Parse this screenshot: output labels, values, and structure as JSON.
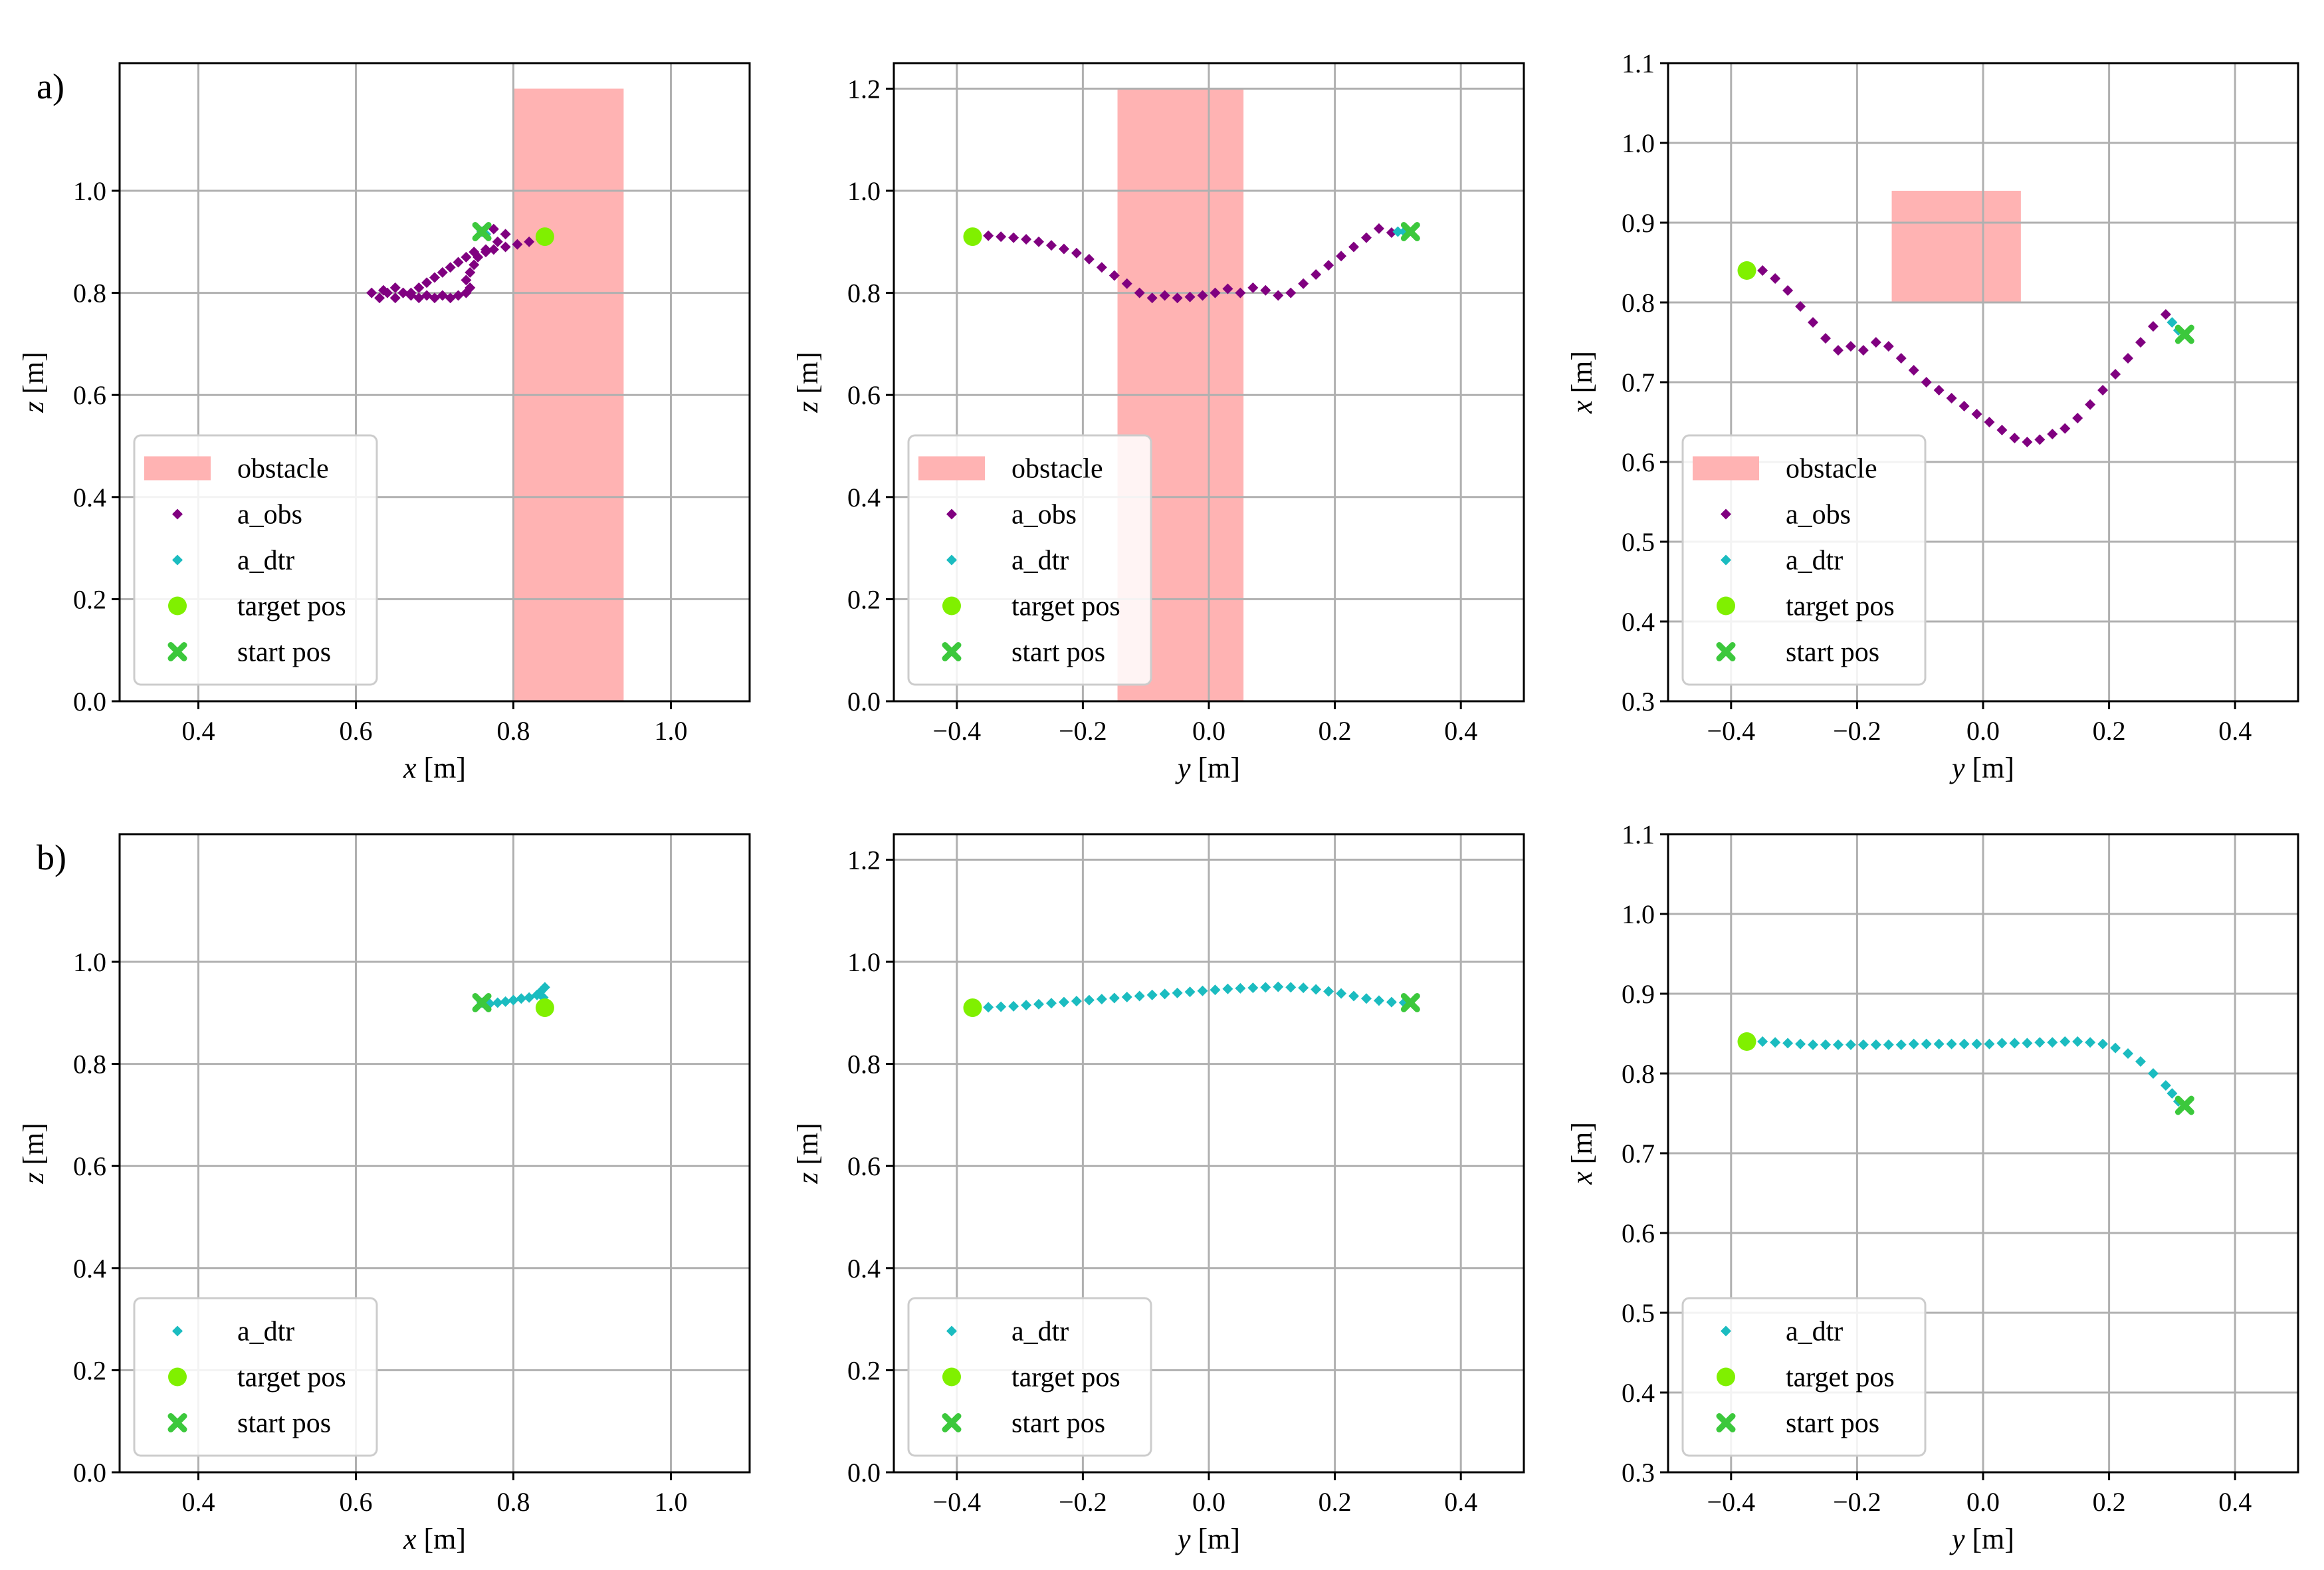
{
  "figure": {
    "panel_labels": [
      "a)",
      "b)"
    ],
    "colors": {
      "obstacle": "#ffb3b3",
      "a_obs": "#800080",
      "a_dtr": "#1bbcc0",
      "target": "#80f000",
      "start": "#3cc83c",
      "grid": "#b0b0b0"
    },
    "legend_labels": {
      "obstacle": "obstacle",
      "a_obs": "a_obs",
      "a_dtr": "a_dtr",
      "target": "target pos",
      "start": "start pos"
    }
  },
  "chart_data": [
    {
      "type": "scatter",
      "row": "a",
      "col": 0,
      "xlabel": {
        "var": "x",
        "unit": " [m]"
      },
      "ylabel": {
        "var": "z",
        "unit": " [m]"
      },
      "xlim": [
        0.3,
        1.1
      ],
      "ylim": [
        0.0,
        1.25
      ],
      "xticks": [
        0.4,
        0.6,
        0.8,
        1.0
      ],
      "xtick_labels": [
        "0.4",
        "0.6",
        "0.8",
        "1.0"
      ],
      "yticks": [
        0.0,
        0.2,
        0.4,
        0.6,
        0.8,
        1.0
      ],
      "ytick_labels": [
        "0.0",
        "0.2",
        "0.4",
        "0.6",
        "0.8",
        "1.0"
      ],
      "obstacle": {
        "x": [
          0.8,
          0.94
        ],
        "y": [
          0.0,
          1.2
        ]
      },
      "legend": [
        "obstacle",
        "a_obs",
        "a_dtr",
        "target",
        "start"
      ],
      "a_obs": [
        [
          0.76,
          0.92
        ],
        [
          0.775,
          0.925
        ],
        [
          0.79,
          0.915
        ],
        [
          0.78,
          0.9
        ],
        [
          0.765,
          0.885
        ],
        [
          0.75,
          0.88
        ],
        [
          0.74,
          0.87
        ],
        [
          0.73,
          0.86
        ],
        [
          0.72,
          0.85
        ],
        [
          0.71,
          0.84
        ],
        [
          0.7,
          0.83
        ],
        [
          0.69,
          0.82
        ],
        [
          0.68,
          0.81
        ],
        [
          0.67,
          0.8
        ],
        [
          0.66,
          0.8
        ],
        [
          0.65,
          0.79
        ],
        [
          0.64,
          0.8
        ],
        [
          0.63,
          0.79
        ],
        [
          0.62,
          0.8
        ],
        [
          0.635,
          0.805
        ],
        [
          0.65,
          0.81
        ],
        [
          0.66,
          0.8
        ],
        [
          0.67,
          0.795
        ],
        [
          0.68,
          0.79
        ],
        [
          0.69,
          0.795
        ],
        [
          0.7,
          0.79
        ],
        [
          0.71,
          0.795
        ],
        [
          0.72,
          0.79
        ],
        [
          0.73,
          0.795
        ],
        [
          0.74,
          0.8
        ],
        [
          0.745,
          0.81
        ],
        [
          0.74,
          0.825
        ],
        [
          0.745,
          0.84
        ],
        [
          0.75,
          0.855
        ],
        [
          0.755,
          0.87
        ],
        [
          0.765,
          0.88
        ],
        [
          0.775,
          0.885
        ],
        [
          0.79,
          0.89
        ],
        [
          0.805,
          0.895
        ],
        [
          0.82,
          0.9
        ],
        [
          0.835,
          0.905
        ]
      ],
      "a_dtr": [
        [
          0.76,
          0.92
        ],
        [
          0.765,
          0.915
        ]
      ],
      "target": [
        0.84,
        0.91
      ],
      "start": [
        0.76,
        0.92
      ]
    },
    {
      "type": "scatter",
      "row": "a",
      "col": 1,
      "xlabel": {
        "var": "y",
        "unit": " [m]"
      },
      "ylabel": {
        "var": "z",
        "unit": " [m]"
      },
      "xlim": [
        -0.5,
        0.5
      ],
      "ylim": [
        0.0,
        1.25
      ],
      "xticks": [
        -0.4,
        -0.2,
        0.0,
        0.2,
        0.4
      ],
      "xtick_labels": [
        "−0.4",
        "−0.2",
        "0.0",
        "0.2",
        "0.4"
      ],
      "yticks": [
        0.0,
        0.2,
        0.4,
        0.6,
        0.8,
        1.0,
        1.2
      ],
      "ytick_labels": [
        "0.0",
        "0.2",
        "0.4",
        "0.6",
        "0.8",
        "1.0",
        "1.2"
      ],
      "obstacle": {
        "x": [
          -0.145,
          0.055
        ],
        "y": [
          0.0,
          1.2
        ]
      },
      "legend": [
        "obstacle",
        "a_obs",
        "a_dtr",
        "target",
        "start"
      ],
      "a_obs": [
        [
          -0.37,
          0.91
        ],
        [
          -0.35,
          0.912
        ],
        [
          -0.33,
          0.91
        ],
        [
          -0.31,
          0.908
        ],
        [
          -0.29,
          0.905
        ],
        [
          -0.27,
          0.9
        ],
        [
          -0.25,
          0.893
        ],
        [
          -0.23,
          0.886
        ],
        [
          -0.21,
          0.878
        ],
        [
          -0.19,
          0.866
        ],
        [
          -0.17,
          0.85
        ],
        [
          -0.15,
          0.834
        ],
        [
          -0.13,
          0.818
        ],
        [
          -0.11,
          0.8
        ],
        [
          -0.09,
          0.79
        ],
        [
          -0.07,
          0.795
        ],
        [
          -0.05,
          0.79
        ],
        [
          -0.03,
          0.792
        ],
        [
          -0.01,
          0.795
        ],
        [
          0.01,
          0.8
        ],
        [
          0.03,
          0.808
        ],
        [
          0.05,
          0.8
        ],
        [
          0.07,
          0.81
        ],
        [
          0.09,
          0.805
        ],
        [
          0.11,
          0.795
        ],
        [
          0.13,
          0.8
        ],
        [
          0.15,
          0.818
        ],
        [
          0.17,
          0.836
        ],
        [
          0.19,
          0.854
        ],
        [
          0.21,
          0.872
        ],
        [
          0.23,
          0.89
        ],
        [
          0.25,
          0.908
        ],
        [
          0.27,
          0.926
        ],
        [
          0.29,
          0.918
        ]
      ],
      "a_dtr": [
        [
          0.3,
          0.92
        ],
        [
          0.31,
          0.92
        ]
      ],
      "target": [
        -0.375,
        0.91
      ],
      "start": [
        0.32,
        0.92
      ]
    },
    {
      "type": "scatter",
      "row": "a",
      "col": 2,
      "xlabel": {
        "var": "y",
        "unit": " [m]"
      },
      "ylabel": {
        "var": "x",
        "unit": " [m]"
      },
      "xlim": [
        -0.5,
        0.5
      ],
      "ylim": [
        0.3,
        1.1
      ],
      "xticks": [
        -0.4,
        -0.2,
        0.0,
        0.2,
        0.4
      ],
      "xtick_labels": [
        "−0.4",
        "−0.2",
        "0.0",
        "0.2",
        "0.4"
      ],
      "yticks": [
        0.3,
        0.4,
        0.5,
        0.6,
        0.7,
        0.8,
        0.9,
        1.0,
        1.1
      ],
      "ytick_labels": [
        "0.3",
        "0.4",
        "0.5",
        "0.6",
        "0.7",
        "0.8",
        "0.9",
        "1.0",
        "1.1"
      ],
      "obstacle": {
        "x": [
          -0.145,
          0.06
        ],
        "y": [
          0.8,
          0.94
        ]
      },
      "legend": [
        "obstacle",
        "a_obs",
        "a_dtr",
        "target",
        "start"
      ],
      "a_obs": [
        [
          -0.37,
          0.84
        ],
        [
          -0.35,
          0.84
        ],
        [
          -0.33,
          0.83
        ],
        [
          -0.31,
          0.815
        ],
        [
          -0.29,
          0.795
        ],
        [
          -0.27,
          0.775
        ],
        [
          -0.25,
          0.755
        ],
        [
          -0.23,
          0.74
        ],
        [
          -0.21,
          0.745
        ],
        [
          -0.19,
          0.74
        ],
        [
          -0.17,
          0.75
        ],
        [
          -0.15,
          0.745
        ],
        [
          -0.13,
          0.73
        ],
        [
          -0.11,
          0.715
        ],
        [
          -0.09,
          0.7
        ],
        [
          -0.07,
          0.69
        ],
        [
          -0.05,
          0.68
        ],
        [
          -0.03,
          0.67
        ],
        [
          -0.01,
          0.66
        ],
        [
          0.01,
          0.65
        ],
        [
          0.03,
          0.64
        ],
        [
          0.05,
          0.63
        ],
        [
          0.07,
          0.625
        ],
        [
          0.09,
          0.628
        ],
        [
          0.11,
          0.635
        ],
        [
          0.13,
          0.642
        ],
        [
          0.15,
          0.655
        ],
        [
          0.17,
          0.672
        ],
        [
          0.19,
          0.69
        ],
        [
          0.21,
          0.71
        ],
        [
          0.23,
          0.73
        ],
        [
          0.25,
          0.75
        ],
        [
          0.27,
          0.77
        ],
        [
          0.29,
          0.785
        ]
      ],
      "a_dtr": [
        [
          0.3,
          0.775
        ],
        [
          0.31,
          0.765
        ]
      ],
      "target": [
        -0.375,
        0.84
      ],
      "start": [
        0.32,
        0.76
      ]
    },
    {
      "type": "scatter",
      "row": "b",
      "col": 0,
      "xlabel": {
        "var": "x",
        "unit": " [m]"
      },
      "ylabel": {
        "var": "z",
        "unit": " [m]"
      },
      "xlim": [
        0.3,
        1.1
      ],
      "ylim": [
        0.0,
        1.25
      ],
      "xticks": [
        0.4,
        0.6,
        0.8,
        1.0
      ],
      "xtick_labels": [
        "0.4",
        "0.6",
        "0.8",
        "1.0"
      ],
      "yticks": [
        0.0,
        0.2,
        0.4,
        0.6,
        0.8,
        1.0
      ],
      "ytick_labels": [
        "0.0",
        "0.2",
        "0.4",
        "0.6",
        "0.8",
        "1.0"
      ],
      "obstacle": null,
      "legend": [
        "a_dtr",
        "target",
        "start"
      ],
      "a_obs": [],
      "a_dtr": [
        [
          0.76,
          0.92
        ],
        [
          0.77,
          0.918
        ],
        [
          0.78,
          0.92
        ],
        [
          0.79,
          0.922
        ],
        [
          0.8,
          0.925
        ],
        [
          0.81,
          0.928
        ],
        [
          0.82,
          0.93
        ],
        [
          0.83,
          0.935
        ],
        [
          0.835,
          0.942
        ],
        [
          0.84,
          0.95
        ],
        [
          0.838,
          0.93
        ],
        [
          0.84,
          0.92
        ]
      ],
      "target": [
        0.84,
        0.91
      ],
      "start": [
        0.76,
        0.92
      ]
    },
    {
      "type": "scatter",
      "row": "b",
      "col": 1,
      "xlabel": {
        "var": "y",
        "unit": " [m]"
      },
      "ylabel": {
        "var": "z",
        "unit": " [m]"
      },
      "xlim": [
        -0.5,
        0.5
      ],
      "ylim": [
        0.0,
        1.25
      ],
      "xticks": [
        -0.4,
        -0.2,
        0.0,
        0.2,
        0.4
      ],
      "xtick_labels": [
        "−0.4",
        "−0.2",
        "0.0",
        "0.2",
        "0.4"
      ],
      "yticks": [
        0.0,
        0.2,
        0.4,
        0.6,
        0.8,
        1.0,
        1.2
      ],
      "ytick_labels": [
        "0.0",
        "0.2",
        "0.4",
        "0.6",
        "0.8",
        "1.0",
        "1.2"
      ],
      "obstacle": null,
      "legend": [
        "a_dtr",
        "target",
        "start"
      ],
      "a_obs": [],
      "a_dtr": [
        [
          -0.37,
          0.91
        ],
        [
          -0.35,
          0.911
        ],
        [
          -0.33,
          0.912
        ],
        [
          -0.31,
          0.913
        ],
        [
          -0.29,
          0.915
        ],
        [
          -0.27,
          0.917
        ],
        [
          -0.25,
          0.919
        ],
        [
          -0.23,
          0.921
        ],
        [
          -0.21,
          0.923
        ],
        [
          -0.19,
          0.925
        ],
        [
          -0.17,
          0.927
        ],
        [
          -0.15,
          0.929
        ],
        [
          -0.13,
          0.931
        ],
        [
          -0.11,
          0.933
        ],
        [
          -0.09,
          0.935
        ],
        [
          -0.07,
          0.937
        ],
        [
          -0.05,
          0.939
        ],
        [
          -0.03,
          0.941
        ],
        [
          -0.01,
          0.943
        ],
        [
          0.01,
          0.945
        ],
        [
          0.03,
          0.947
        ],
        [
          0.05,
          0.948
        ],
        [
          0.07,
          0.949
        ],
        [
          0.09,
          0.95
        ],
        [
          0.11,
          0.951
        ],
        [
          0.13,
          0.95
        ],
        [
          0.15,
          0.949
        ],
        [
          0.17,
          0.946
        ],
        [
          0.19,
          0.942
        ],
        [
          0.21,
          0.938
        ],
        [
          0.23,
          0.933
        ],
        [
          0.25,
          0.928
        ],
        [
          0.27,
          0.924
        ],
        [
          0.29,
          0.921
        ],
        [
          0.31,
          0.92
        ]
      ],
      "target": [
        -0.375,
        0.91
      ],
      "start": [
        0.32,
        0.92
      ]
    },
    {
      "type": "scatter",
      "row": "b",
      "col": 2,
      "xlabel": {
        "var": "y",
        "unit": " [m]"
      },
      "ylabel": {
        "var": "x",
        "unit": " [m]"
      },
      "xlim": [
        -0.5,
        0.5
      ],
      "ylim": [
        0.3,
        1.1
      ],
      "xticks": [
        -0.4,
        -0.2,
        0.0,
        0.2,
        0.4
      ],
      "xtick_labels": [
        "−0.4",
        "−0.2",
        "0.0",
        "0.2",
        "0.4"
      ],
      "yticks": [
        0.3,
        0.4,
        0.5,
        0.6,
        0.7,
        0.8,
        0.9,
        1.0,
        1.1
      ],
      "ytick_labels": [
        "0.3",
        "0.4",
        "0.5",
        "0.6",
        "0.7",
        "0.8",
        "0.9",
        "1.0",
        "1.1"
      ],
      "obstacle": null,
      "legend": [
        "a_dtr",
        "target",
        "start"
      ],
      "a_obs": [],
      "a_dtr": [
        [
          -0.37,
          0.842
        ],
        [
          -0.35,
          0.84
        ],
        [
          -0.33,
          0.839
        ],
        [
          -0.31,
          0.838
        ],
        [
          -0.29,
          0.837
        ],
        [
          -0.27,
          0.836
        ],
        [
          -0.25,
          0.836
        ],
        [
          -0.23,
          0.836
        ],
        [
          -0.21,
          0.836
        ],
        [
          -0.19,
          0.836
        ],
        [
          -0.17,
          0.836
        ],
        [
          -0.15,
          0.836
        ],
        [
          -0.13,
          0.836
        ],
        [
          -0.11,
          0.837
        ],
        [
          -0.09,
          0.837
        ],
        [
          -0.07,
          0.837
        ],
        [
          -0.05,
          0.837
        ],
        [
          -0.03,
          0.837
        ],
        [
          -0.01,
          0.837
        ],
        [
          0.01,
          0.837
        ],
        [
          0.03,
          0.838
        ],
        [
          0.05,
          0.838
        ],
        [
          0.07,
          0.838
        ],
        [
          0.09,
          0.839
        ],
        [
          0.11,
          0.839
        ],
        [
          0.13,
          0.84
        ],
        [
          0.15,
          0.84
        ],
        [
          0.17,
          0.839
        ],
        [
          0.19,
          0.837
        ],
        [
          0.21,
          0.832
        ],
        [
          0.23,
          0.825
        ],
        [
          0.25,
          0.815
        ],
        [
          0.27,
          0.8
        ],
        [
          0.29,
          0.785
        ],
        [
          0.3,
          0.775
        ],
        [
          0.31,
          0.765
        ]
      ],
      "target": [
        -0.375,
        0.84
      ],
      "start": [
        0.32,
        0.76
      ]
    }
  ]
}
